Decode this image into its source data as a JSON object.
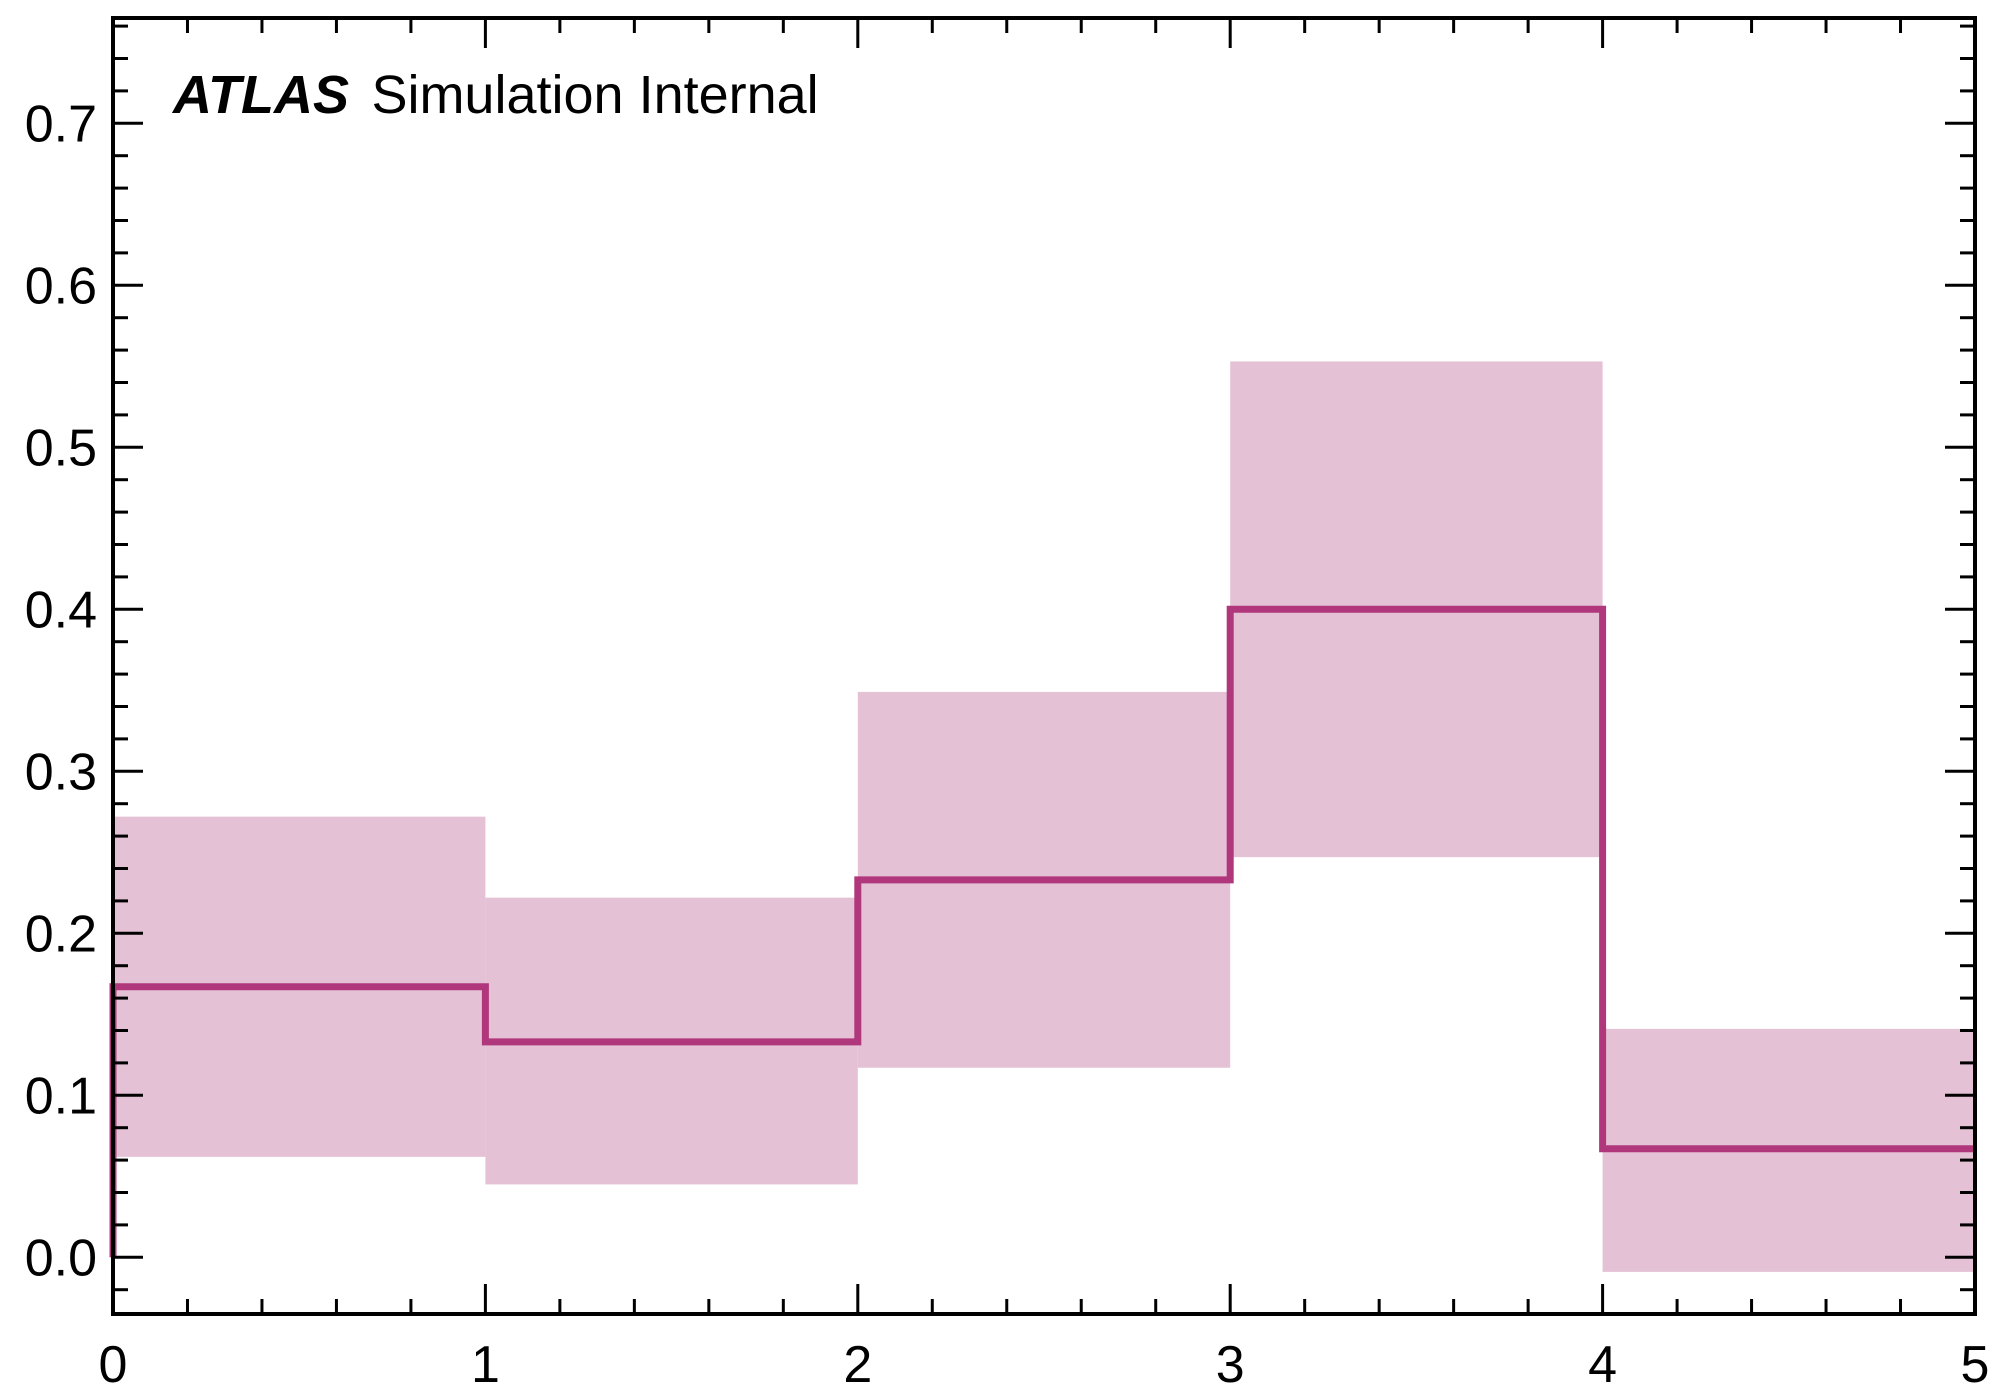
{
  "chart_data": {
    "type": "histogram",
    "annotation": {
      "experiment": "ATLAS",
      "status": "Simulation Internal"
    },
    "xlabel": "",
    "ylabel": "",
    "xlim": [
      0,
      5
    ],
    "ylim": [
      -0.035,
      0.765
    ],
    "x_ticks": [
      "0",
      "1",
      "2",
      "3",
      "4",
      "5"
    ],
    "y_ticks": [
      "0.0",
      "0.1",
      "0.2",
      "0.3",
      "0.4",
      "0.5",
      "0.6",
      "0.7"
    ],
    "bin_edges": [
      0,
      1,
      2,
      3,
      4,
      5
    ],
    "values": [
      0.167,
      0.133,
      0.233,
      0.4,
      0.067
    ],
    "band_low": [
      0.062,
      0.045,
      0.117,
      0.247,
      -0.009
    ],
    "band_high": [
      0.272,
      0.222,
      0.349,
      0.553,
      0.141
    ],
    "line_color": "#b0377b",
    "band_color": "#e4c1d4",
    "grid": false
  }
}
